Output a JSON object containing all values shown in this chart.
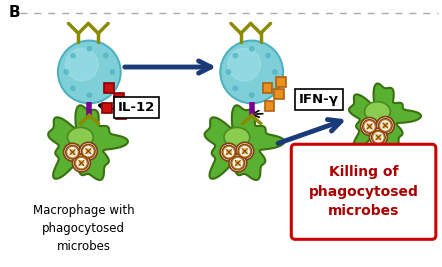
{
  "bg_color": "#ffffff",
  "dashed_line_color": "#aaaaaa",
  "label_B": "B",
  "arrow_color": "#1a3a7a",
  "nk_cell_color": "#7ecfd8",
  "nk_cell_edge": "#4ab0c0",
  "nk_cell_shine": "#b8eaf0",
  "nk_receptor_color": "#8b8b00",
  "macrophage_color": "#5ab030",
  "macrophage_edge": "#3a7010",
  "macrophage_light": "#7ad050",
  "nucleus_color": "#8acc50",
  "nucleus_edge": "#4a8a20",
  "microbe_outer": "#f0f0f0",
  "microbe_color": "#c87820",
  "microbe_edge": "#804010",
  "microbe_inner": "#e8c050",
  "receptor_stem_color": "#7a0090",
  "receptor_arm_color": "#8b8b00",
  "il12_color": "#cc1111",
  "il12_border": "#880000",
  "ifng_color": "#e89020",
  "ifng_border": "#b06010",
  "label_il12": "IL-12",
  "label_ifng": "IFN-γ",
  "label_macro": "Macrophage with\nphagocytosed\nmicrobes",
  "label_killing_title": "Killing of\nphagocytosed\nmicrobes",
  "killing_box_color": "#cc0000",
  "killing_box_bg": "#ffffff",
  "killing_text_color": "#aa0000",
  "label_fontsize": 8.5,
  "killing_fontsize": 10,
  "dpi": 100
}
